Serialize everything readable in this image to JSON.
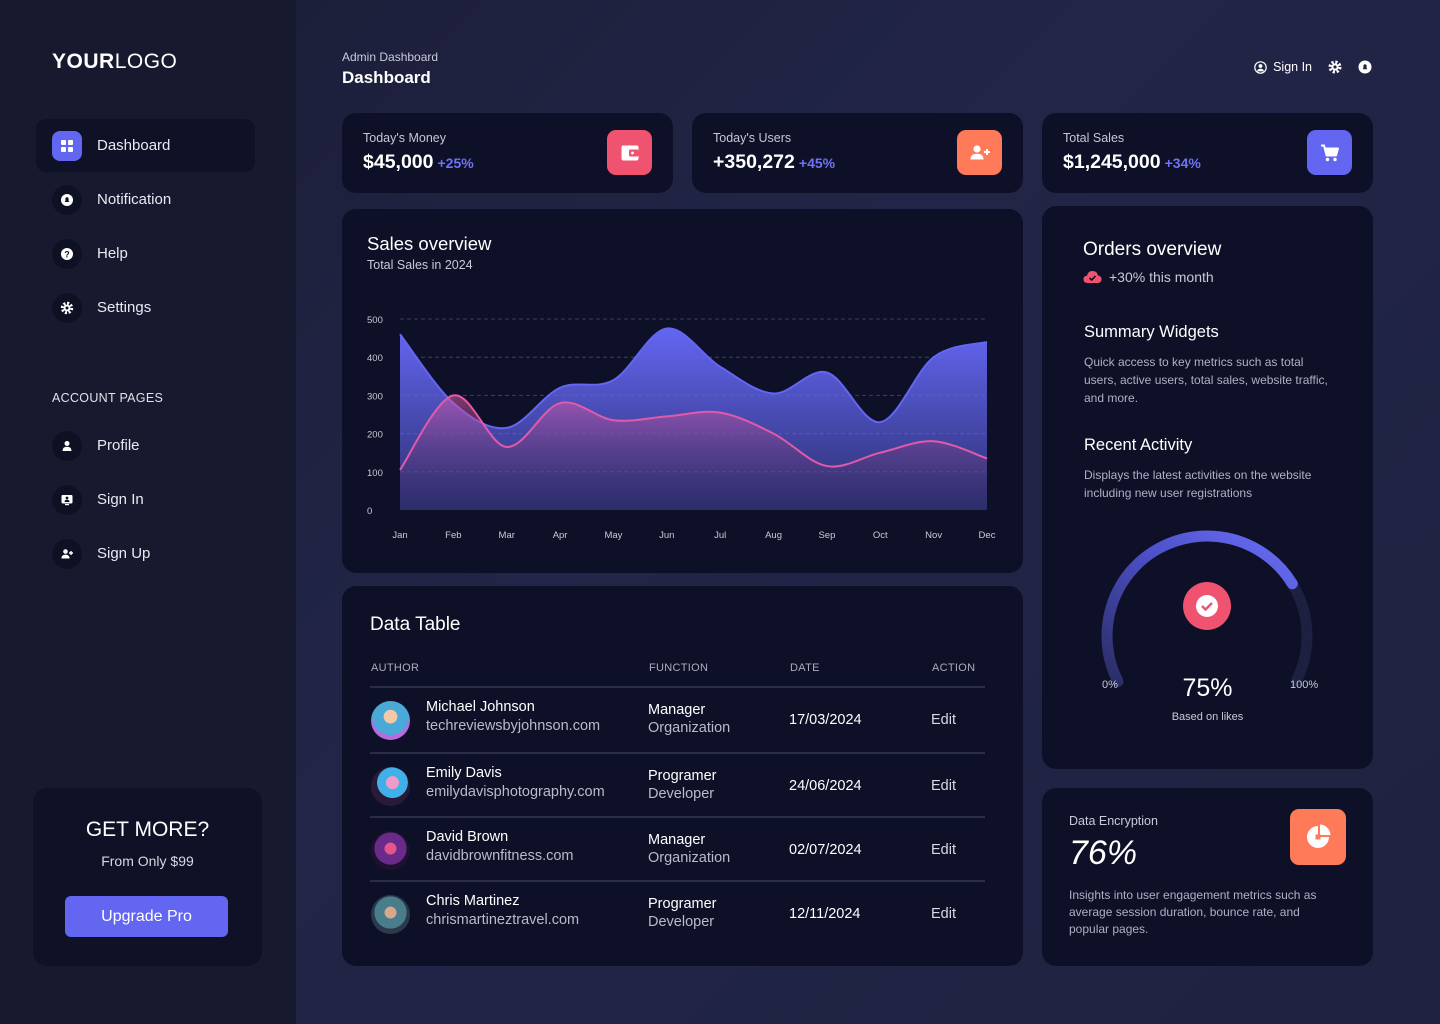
{
  "logo": {
    "bold": "YOUR",
    "light": "LOGO"
  },
  "sidebar": {
    "items": [
      {
        "label": "Dashboard",
        "icon": "grid-icon"
      },
      {
        "label": "Notification",
        "icon": "bell-icon"
      },
      {
        "label": "Help",
        "icon": "help-icon"
      },
      {
        "label": "Settings",
        "icon": "gear-icon"
      }
    ],
    "section_title": "ACCOUNT PAGES",
    "account_items": [
      {
        "label": "Profile",
        "icon": "user-icon"
      },
      {
        "label": "Sign In",
        "icon": "signin-icon"
      },
      {
        "label": "Sign Up",
        "icon": "user-plus-icon"
      }
    ]
  },
  "promo": {
    "title": "GET MORE?",
    "subtitle": "From Only $99",
    "button": "Upgrade Pro"
  },
  "header": {
    "breadcrumb": "Admin Dashboard",
    "title": "Dashboard",
    "signin": "Sign In"
  },
  "stats": [
    {
      "label": "Today's Money",
      "value": "$45,000",
      "delta": "+25%",
      "icon": "wallet-icon",
      "color": "#f0536f"
    },
    {
      "label": "Today's Users",
      "value": "+350,272",
      "delta": "+45%",
      "icon": "users-plus-icon",
      "color": "#ff7a59"
    },
    {
      "label": "Total Sales",
      "value": "$1,245,000",
      "delta": "+34%",
      "icon": "cart-icon",
      "color": "#6366f1"
    }
  ],
  "sales": {
    "title": "Sales overview",
    "subtitle": "Total Sales in 2024"
  },
  "chart_data": {
    "type": "area",
    "categories": [
      "Jan",
      "Feb",
      "Mar",
      "Apr",
      "May",
      "Jun",
      "Jul",
      "Aug",
      "Sep",
      "Oct",
      "Nov",
      "Dec"
    ],
    "series": [
      {
        "values": [
          460,
          280,
          215,
          320,
          340,
          475,
          375,
          305,
          360,
          230,
          400,
          440
        ],
        "color": "#6366f1"
      },
      {
        "values": [
          105,
          300,
          165,
          280,
          235,
          245,
          255,
          200,
          115,
          150,
          180,
          135
        ],
        "color": "#e15aa9"
      }
    ],
    "ylim": [
      0,
      500
    ],
    "yticks": [
      0,
      100,
      200,
      300,
      400,
      500
    ],
    "grid": true
  },
  "orders": {
    "title": "Orders overview",
    "delta": "+30% this month",
    "widgets": [
      {
        "title": "Summary Widgets",
        "desc": "Quick access to key metrics such as total users, active users, total sales, website traffic, and more."
      },
      {
        "title": "Recent Activity",
        "desc": "Displays the latest activities on the website including new user registrations"
      }
    ],
    "gauge": {
      "value": "75%",
      "fraction": 0.75,
      "sub": "Based on likes",
      "min": "0%",
      "max": "100%"
    }
  },
  "table": {
    "title": "Data Table",
    "columns": [
      "AUTHOR",
      "FUNCTION",
      "DATE",
      "ACTION"
    ],
    "rows": [
      {
        "name": "Michael Johnson",
        "site": "techreviewsbyjohnson.com",
        "role": "Manager",
        "dept": "Organization",
        "date": "17/03/2024",
        "action": "Edit"
      },
      {
        "name": "Emily Davis",
        "site": "emilydavisphotography.com",
        "role": "Programer",
        "dept": "Developer",
        "date": "24/06/2024",
        "action": "Edit"
      },
      {
        "name": "David Brown",
        "site": "davidbrownfitness.com",
        "role": "Manager",
        "dept": "Organization",
        "date": "02/07/2024",
        "action": "Edit"
      },
      {
        "name": "Chris Martinez",
        "site": "chrismartineztravel.com",
        "role": "Programer",
        "dept": "Developer",
        "date": "12/11/2024",
        "action": "Edit"
      }
    ]
  },
  "encryption": {
    "label": "Data Encryption",
    "value": "76%",
    "desc": "Insights into user engagement metrics such as average session duration, bounce rate, and popular pages."
  }
}
